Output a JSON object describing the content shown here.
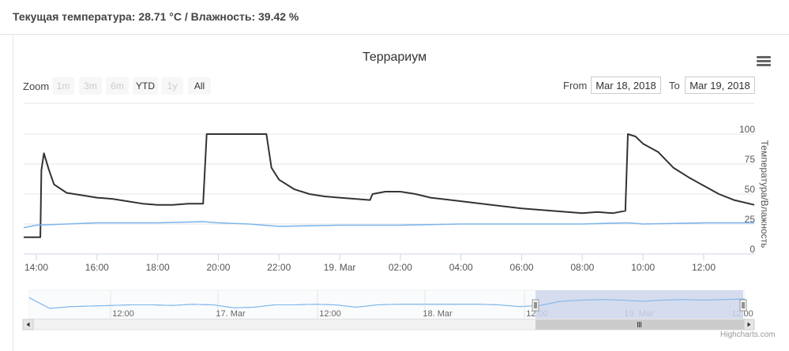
{
  "status": {
    "text": "Текущая температура: 28.71 °C / Влажность: 39.42 %"
  },
  "toolbar": {
    "zoom_label": "Zoom",
    "buttons": [
      "1m",
      "3m",
      "6m",
      "YTD",
      "1y",
      "All"
    ],
    "enabled_buttons": [
      "YTD",
      "All"
    ],
    "from_label": "From",
    "from_value": "Mar 18, 2018",
    "to_label": "To",
    "to_value": "Mar 19, 2018"
  },
  "credits": "Highcharts.com",
  "colors": {
    "temperature_line": "#333333",
    "humidity_line": "#7cb5ec",
    "navigator_mask": "#ccd6eb"
  },
  "chart_data": {
    "type": "line",
    "title": "Террариум",
    "ylabel": "Температура/Влажность",
    "ylim": [
      0,
      100
    ],
    "y_ticks": [
      0,
      25,
      50,
      75,
      100
    ],
    "x_tick_labels": [
      "14:00",
      "16:00",
      "18:00",
      "20:00",
      "22:00",
      "19. Mar",
      "02:00",
      "04:00",
      "06:00",
      "08:00",
      "10:00",
      "12:00"
    ],
    "x_range": [
      "Mar 18, 2018 13:35",
      "Mar 19, 2018 13:40"
    ],
    "series": [
      {
        "x": [
          "18 Mar 13:35",
          "18 Mar 14:08",
          "18 Mar 14:10",
          "18 Mar 14:15",
          "18 Mar 14:25",
          "18 Mar 14:35",
          "18 Mar 15:00",
          "18 Mar 15:30",
          "18 Mar 16:00",
          "18 Mar 16:30",
          "18 Mar 17:00",
          "18 Mar 17:30",
          "18 Mar 18:00",
          "18 Mar 18:30",
          "18 Mar 19:00",
          "18 Mar 19:30",
          "18 Mar 19:37",
          "18 Mar 19:42",
          "18 Mar 20:00",
          "18 Mar 21:00",
          "18 Mar 21:35",
          "18 Mar 21:45",
          "18 Mar 22:00",
          "18 Mar 22:30",
          "18 Mar 23:00",
          "18 Mar 23:30",
          "19 Mar 00:00",
          "19 Mar 00:30",
          "19 Mar 01:00",
          "19 Mar 01:05",
          "19 Mar 01:30",
          "19 Mar 02:00",
          "19 Mar 02:30",
          "19 Mar 03:00",
          "19 Mar 04:00",
          "19 Mar 05:00",
          "19 Mar 06:00",
          "19 Mar 07:00",
          "19 Mar 08:00",
          "19 Mar 08:30",
          "19 Mar 09:00",
          "19 Mar 09:25",
          "19 Mar 09:30",
          "19 Mar 09:45",
          "19 Mar 10:00",
          "19 Mar 10:30",
          "19 Mar 11:00",
          "19 Mar 11:30",
          "19 Mar 12:00",
          "19 Mar 12:30",
          "19 Mar 13:00",
          "19 Mar 13:40"
        ],
        "values": [
          14,
          14,
          70,
          84,
          70,
          58,
          51,
          49,
          47,
          46,
          44,
          42,
          41,
          41,
          42,
          42,
          100,
          100,
          100,
          100,
          100,
          72,
          62,
          54,
          50,
          48,
          47,
          46,
          45,
          50,
          52,
          52,
          50,
          47,
          44,
          41,
          38,
          36,
          34,
          35,
          34,
          36,
          100,
          98,
          92,
          85,
          72,
          64,
          57,
          50,
          45,
          41
        ]
      },
      {
        "x": [
          "18 Mar 13:35",
          "18 Mar 14:00",
          "18 Mar 15:00",
          "18 Mar 16:00",
          "18 Mar 18:00",
          "18 Mar 19:30",
          "18 Mar 20:00",
          "18 Mar 21:00",
          "18 Mar 22:00",
          "19 Mar 00:00",
          "19 Mar 02:00",
          "19 Mar 04:00",
          "19 Mar 06:00",
          "19 Mar 08:00",
          "19 Mar 09:30",
          "19 Mar 10:00",
          "19 Mar 12:00",
          "19 Mar 13:40"
        ],
        "values": [
          22,
          24,
          25,
          26,
          26,
          27,
          26,
          25,
          23,
          24,
          24,
          25,
          25,
          25,
          26,
          25,
          26,
          26
        ]
      }
    ],
    "navigator": {
      "tick_labels": [
        "12:00",
        "17. Mar",
        "12:00",
        "18. Mar",
        "12:00",
        "19. Mar",
        "12:00"
      ],
      "selected_range": [
        "Mar 18, 2018",
        "Mar 19, 2018"
      ],
      "values": [
        30,
        12,
        15,
        16,
        17,
        18,
        18,
        17,
        19,
        18,
        13,
        14,
        18,
        18,
        19,
        18,
        14,
        18,
        19,
        19,
        19,
        19,
        19,
        18,
        15,
        17,
        24,
        26,
        27,
        26,
        24,
        26,
        27,
        26,
        27,
        28
      ]
    }
  }
}
